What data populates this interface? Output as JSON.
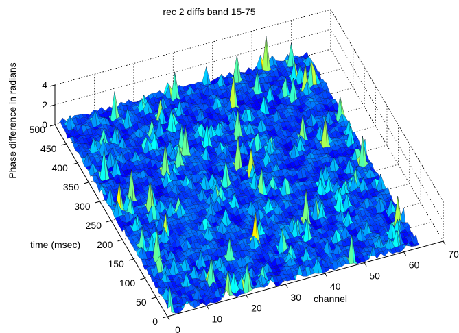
{
  "chart_data": {
    "type": "surface3d",
    "title": "rec 2 diffs band 15-75",
    "xlabel": "channel",
    "ylabel": "time (msec)",
    "zlabel": "Phase difference in radians",
    "xlim": [
      0,
      70
    ],
    "ylim": [
      0,
      500
    ],
    "zlim": [
      0,
      4
    ],
    "x_ticks": [
      0,
      10,
      20,
      30,
      40,
      50,
      60,
      70
    ],
    "y_ticks": [
      0,
      50,
      100,
      150,
      200,
      250,
      300,
      350,
      400,
      450,
      500
    ],
    "z_ticks": [
      0,
      2,
      4
    ],
    "grid": true,
    "colormap": "jet",
    "surface_extent": {
      "channel": [
        1,
        64
      ],
      "time": [
        0,
        500
      ]
    },
    "z_typical": [
      0,
      0.5
    ],
    "z_peak_max": 3.5
  }
}
